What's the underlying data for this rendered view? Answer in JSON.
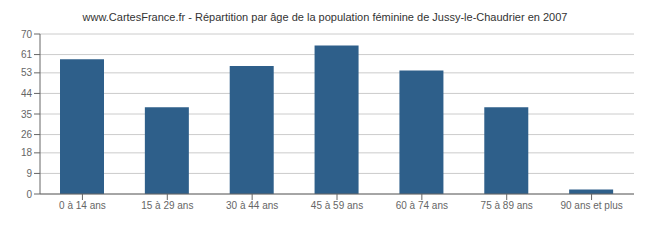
{
  "chart_data": {
    "type": "bar",
    "title": "www.CartesFrance.fr - Répartition par âge de la population féminine de Jussy-le-Chaudrier en 2007",
    "categories": [
      "0 à 14 ans",
      "15 à 29 ans",
      "30 à 44 ans",
      "45 à 59 ans",
      "60 à 74 ans",
      "75 à 89 ans",
      "90 ans et plus"
    ],
    "values": [
      59,
      38,
      56,
      65,
      54,
      38,
      2
    ],
    "color": "#2e5f8a",
    "ylim": [
      0,
      70
    ],
    "yticks": [
      0,
      9,
      18,
      26,
      35,
      44,
      53,
      61,
      70
    ],
    "grid": true
  }
}
